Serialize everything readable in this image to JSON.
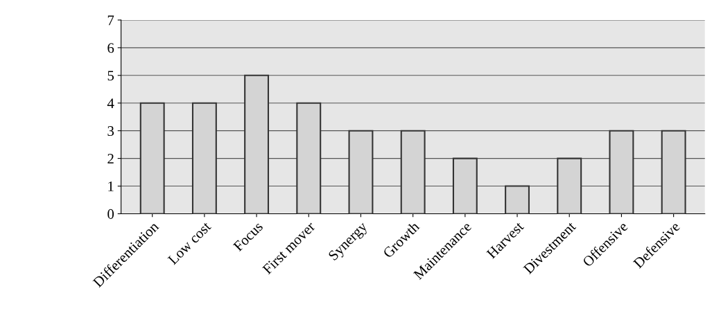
{
  "chart_data": {
    "type": "bar",
    "categories": [
      "Differentiation",
      "Low cost",
      "Focus",
      "First mover",
      "Synergy",
      "Growth",
      "Maintenance",
      "Harvest",
      "Divestment",
      "Offensive",
      "Defensive"
    ],
    "values": [
      4,
      4,
      5,
      4,
      3,
      3,
      2,
      1,
      2,
      3,
      3
    ],
    "color": "#d4d4d4",
    "ylim": [
      0,
      7
    ],
    "yticks": [
      0,
      1,
      2,
      3,
      4,
      5,
      6,
      7
    ],
    "grid": "y"
  }
}
